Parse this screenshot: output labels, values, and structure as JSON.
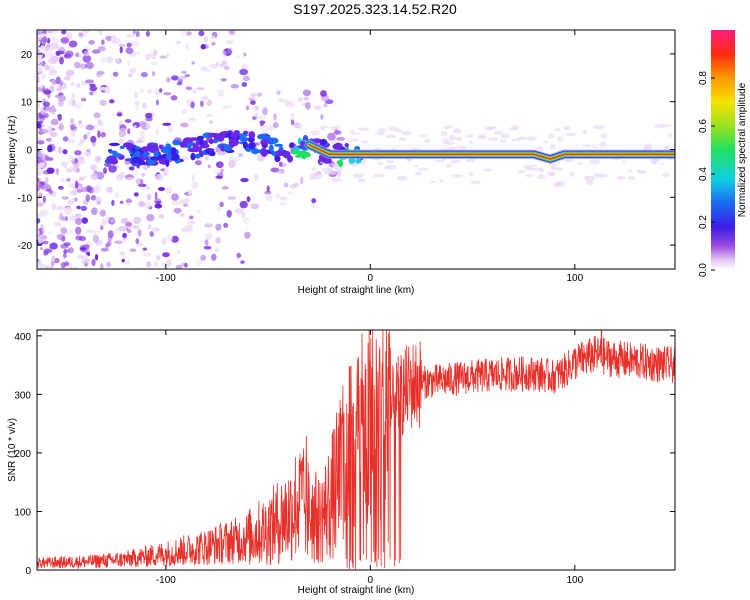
{
  "title": "S197.2025.323.14.52.R20",
  "colors": {
    "snr_line": "#e8302a",
    "frame": "#000000"
  },
  "chart_data": [
    {
      "type": "heatmap",
      "name": "spectrogram",
      "xlabel": "Height of straight line (km)",
      "ylabel": "Frequency (Hz)",
      "xlim": [
        -163,
        149
      ],
      "ylim": [
        -25,
        25
      ],
      "x_ticks": [
        -100,
        0,
        100
      ],
      "y_ticks": [
        -20,
        -10,
        0,
        10,
        20
      ],
      "signal_ridge": {
        "heights": [
          -160,
          -120,
          -100,
          -80,
          -60,
          -40,
          -30,
          -20,
          -10,
          0,
          20,
          40,
          60,
          75,
          80,
          88,
          95,
          110,
          130,
          149
        ],
        "frequency": [
          0,
          -1,
          -1,
          1,
          2,
          -1,
          1,
          -1,
          -1,
          -1,
          -1,
          -1,
          -1,
          -1,
          -1,
          -2,
          -1,
          -1,
          -1,
          -1
        ]
      },
      "colorbar": {
        "label": "Normalized spectral amplitude",
        "range": [
          0,
          1
        ],
        "ticks": [
          "0.0",
          "0.2",
          "0.4",
          "0.6",
          "0.8"
        ],
        "colormap": "rainbow"
      }
    },
    {
      "type": "line",
      "name": "snr",
      "xlabel": "Height of straight line (km)",
      "ylabel": "SNR (10 * v/v)",
      "xlim": [
        -163,
        149
      ],
      "ylim": [
        0,
        410
      ],
      "x_ticks": [
        -100,
        0,
        100
      ],
      "y_ticks": [
        0,
        100,
        200,
        300,
        400
      ],
      "trend": {
        "x": [
          -163,
          -140,
          -120,
          -100,
          -80,
          -60,
          -50,
          -40,
          -35,
          -30,
          -25,
          -20,
          -15,
          -10,
          -5,
          0,
          5,
          10,
          15,
          20,
          25,
          30,
          40,
          50,
          60,
          70,
          80,
          90,
          95,
          100,
          110,
          120,
          130,
          140,
          149
        ],
        "y": [
          12,
          14,
          18,
          28,
          40,
          55,
          70,
          95,
          120,
          100,
          85,
          115,
          155,
          185,
          210,
          225,
          250,
          275,
          300,
          315,
          320,
          322,
          326,
          330,
          333,
          335,
          336,
          330,
          340,
          355,
          368,
          360,
          357,
          352,
          350
        ]
      },
      "peak": {
        "x": 113,
        "y": 410
      }
    }
  ]
}
